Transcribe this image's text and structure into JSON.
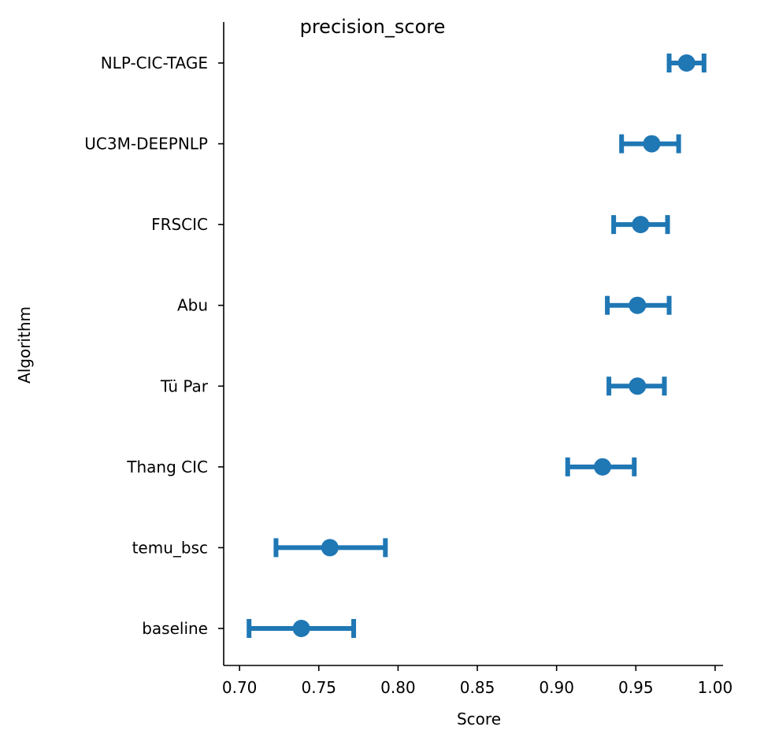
{
  "chart_data": {
    "type": "scatter",
    "title": "precision_score",
    "xlabel": "Score",
    "ylabel": "Algorithm",
    "xlim": [
      0.69,
      1.005
    ],
    "xticks": [
      "0.70",
      "0.75",
      "0.80",
      "0.85",
      "0.90",
      "0.95",
      "1.00"
    ],
    "grid": false,
    "color": "#1f77b4",
    "categories": [
      "NLP-CIC-TAGE",
      "UC3M-DEEPNLP",
      "FRSCIC",
      "Abu",
      "Tü Par",
      "Thang CIC",
      "temu_bsc",
      "baseline"
    ],
    "values": [
      0.982,
      0.96,
      0.953,
      0.951,
      0.951,
      0.929,
      0.757,
      0.739
    ],
    "error_low": [
      0.971,
      0.941,
      0.936,
      0.932,
      0.933,
      0.907,
      0.723,
      0.706
    ],
    "error_high": [
      0.993,
      0.977,
      0.97,
      0.971,
      0.968,
      0.949,
      0.792,
      0.772
    ]
  }
}
